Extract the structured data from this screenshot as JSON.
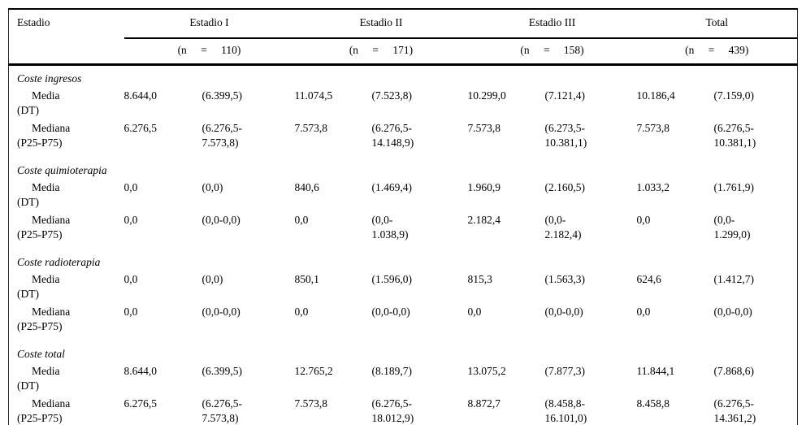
{
  "colors": {
    "background": "#ffffff",
    "text": "#000000",
    "rule": "#000000"
  },
  "table": {
    "row_header_label": "Estadio",
    "groups": [
      {
        "label": "Estadio I",
        "n_label": "(n = 110)"
      },
      {
        "label": "Estadio II",
        "n_label": "(n = 171)"
      },
      {
        "label": "Estadio III",
        "n_label": "(n = 158)"
      },
      {
        "label": "Total",
        "n_label": "(n = 439)"
      }
    ],
    "sections": [
      {
        "title": "Coste ingresos",
        "rows": [
          {
            "label": "Media",
            "label2": "(DT)",
            "cells": [
              "8.644,0",
              "(6.399,5)",
              "11.074,5",
              "(7.523,8)",
              "10.299,0",
              "(7.121,4)",
              "10.186,4",
              "(7.159,0)"
            ]
          },
          {
            "label": "Mediana",
            "label2": "(P25-P75)",
            "cells": [
              "6.276,5",
              "(6.276,5-\n7.573,8)",
              "7.573,8",
              "(6.276,5-\n14.148,9)",
              "7.573,8",
              "(6.273,5-\n10.381,1)",
              "7.573,8",
              "(6.276,5-\n10.381,1)"
            ]
          }
        ]
      },
      {
        "title": "Coste quimioterapia",
        "rows": [
          {
            "label": "Media",
            "label2": "(DT)",
            "cells": [
              "0,0",
              "(0,0)",
              "840,6",
              "(1.469,4)",
              "1.960,9",
              "(2.160,5)",
              "1.033,2",
              "(1.761,9)"
            ]
          },
          {
            "label": "Mediana",
            "label2": "(P25-P75)",
            "cells": [
              "0,0",
              "(0,0-0,0)",
              "0,0",
              "(0,0-\n1.038,9)",
              "2.182,4",
              "(0,0-\n2.182,4)",
              "0,0",
              "(0,0-\n1.299,0)"
            ]
          }
        ]
      },
      {
        "title": "Coste radioterapia",
        "rows": [
          {
            "label": "Media",
            "label2": "(DT)",
            "cells": [
              "0,0",
              "(0,0)",
              "850,1",
              "(1.596,0)",
              "815,3",
              "(1.563,3)",
              "624,6",
              "(1.412,7)"
            ]
          },
          {
            "label": "Mediana",
            "label2": "(P25-P75)",
            "cells": [
              "0,0",
              "(0,0-0,0)",
              "0,0",
              "(0,0-0,0)",
              "0,0",
              "(0,0-0,0)",
              "0,0",
              "(0,0-0,0)"
            ]
          }
        ]
      },
      {
        "title": "Coste total",
        "rows": [
          {
            "label": "Media",
            "label2": "(DT)",
            "cells": [
              "8.644,0",
              "(6.399,5)",
              "12.765,2",
              "(8.189,7)",
              "13.075,2",
              "(7.877,3)",
              "11.844,1",
              "(7.868,6)"
            ]
          },
          {
            "label": "Mediana",
            "label2": "(P25-P75)",
            "cells": [
              "6.276,5",
              "(6.276,5-\n7.573,8)",
              "7.573,8",
              "(6.276,5-\n18.012,9)",
              "8.872,7",
              "(8.458,8-\n16.101,0)",
              "8.458,8",
              "(6.276,5-\n14.361,2)"
            ]
          }
        ]
      }
    ]
  }
}
